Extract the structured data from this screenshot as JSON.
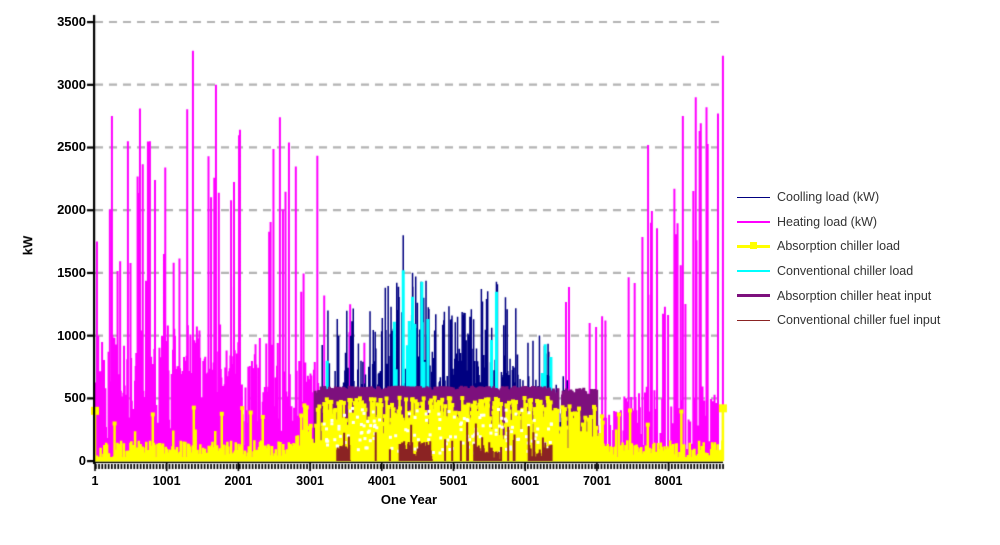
{
  "chart_data": {
    "type": "line",
    "title": "",
    "xlabel": "One Year",
    "ylabel": "kW",
    "x_ticks": [
      1,
      1001,
      2001,
      3001,
      4001,
      5001,
      6001,
      7001,
      8001
    ],
    "y_ticks": [
      0,
      500,
      1000,
      1500,
      2000,
      2500,
      3000,
      3500
    ],
    "xlim": [
      1,
      8760
    ],
    "ylim": [
      0,
      3500
    ],
    "grid": "horizontal-dashed",
    "gridline_color": "#b3b3b3",
    "axis_color": "#000000",
    "legend_position": "right",
    "note": "Hourly (8760 h) load profiles; values estimated from figure envelopes",
    "draw_order": [
      1,
      0,
      3,
      4,
      2,
      5
    ],
    "series": [
      {
        "name": "Coolling load (kW)",
        "color": "#000080",
        "line_width": 1.5,
        "legend_line": 1.5,
        "segments": [
          {
            "x0": 3150,
            "x1": 3450,
            "step": 10,
            "mode": "spikes",
            "lo": 80,
            "hi": 450,
            "p": 0.18,
            "pk_lo": 700,
            "pk_hi": 1230
          },
          {
            "x0": 3450,
            "x1": 4050,
            "step": 9,
            "mode": "spikes",
            "lo": 250,
            "hi": 800,
            "p": 0.2,
            "pk_lo": 850,
            "pk_hi": 1350
          },
          {
            "x0": 4050,
            "x1": 4650,
            "step": 8,
            "mode": "spikes",
            "lo": 300,
            "hi": 900,
            "p": 0.28,
            "pk_lo": 1000,
            "pk_hi": 1500
          },
          {
            "x0": 4650,
            "x1": 5350,
            "step": 8,
            "mode": "spikes",
            "lo": 330,
            "hi": 900,
            "p": 0.25,
            "pk_lo": 950,
            "pk_hi": 1250
          },
          {
            "x0": 5350,
            "x1": 5900,
            "step": 8,
            "mode": "spikes",
            "lo": 300,
            "hi": 850,
            "p": 0.25,
            "pk_lo": 900,
            "pk_hi": 1430
          },
          {
            "x0": 5900,
            "x1": 6350,
            "step": 10,
            "mode": "spikes",
            "lo": 200,
            "hi": 700,
            "p": 0.2,
            "pk_lo": 750,
            "pk_hi": 1000
          },
          {
            "x0": 6350,
            "x1": 6650,
            "step": 14,
            "mode": "spikes",
            "lo": 50,
            "hi": 400,
            "p": 0.12,
            "pk_lo": 500,
            "pk_hi": 850
          }
        ],
        "peaks": [
          [
            3250,
            1200
          ],
          [
            4300,
            1800
          ],
          [
            4430,
            1500
          ],
          [
            4550,
            1430
          ],
          [
            4980,
            1160
          ],
          [
            5230,
            1150
          ],
          [
            5600,
            1430
          ],
          [
            5750,
            1210
          ],
          [
            6200,
            1000
          ]
        ]
      },
      {
        "name": "Heating load (kW)",
        "color": "#FF00FF",
        "line_width": 2,
        "legend_line": 2.5,
        "segments": [
          {
            "x0": 1,
            "x1": 900,
            "step": 9,
            "mode": "spikes",
            "lo": 20,
            "hi": 1050,
            "p": 0.13,
            "pk_lo": 1400,
            "pk_hi": 2800
          },
          {
            "x0": 900,
            "x1": 1900,
            "step": 9,
            "mode": "spikes",
            "lo": 20,
            "hi": 1100,
            "p": 0.13,
            "pk_lo": 1500,
            "pk_hi": 3000
          },
          {
            "x0": 1900,
            "x1": 2550,
            "step": 10,
            "mode": "spikes",
            "lo": 20,
            "hi": 1000,
            "p": 0.11,
            "pk_lo": 1300,
            "pk_hi": 2650
          },
          {
            "x0": 2550,
            "x1": 3150,
            "step": 12,
            "mode": "spikes",
            "lo": 10,
            "hi": 800,
            "p": 0.09,
            "pk_lo": 1100,
            "pk_hi": 2740
          },
          {
            "x0": 3150,
            "x1": 3950,
            "step": 16,
            "mode": "spikes",
            "lo": 0,
            "hi": 320,
            "p": 0.05,
            "pk_lo": 850,
            "pk_hi": 1350
          },
          {
            "x0": 3950,
            "x1": 6500,
            "step": 25,
            "mode": "spikes",
            "lo": 0,
            "hi": 40,
            "p": 0.012,
            "pk_lo": 120,
            "pk_hi": 420
          },
          {
            "x0": 6500,
            "x1": 7300,
            "step": 14,
            "mode": "spikes",
            "lo": 0,
            "hi": 420,
            "p": 0.1,
            "pk_lo": 950,
            "pk_hi": 1500
          },
          {
            "x0": 7300,
            "x1": 7950,
            "step": 12,
            "mode": "spikes",
            "lo": 0,
            "hi": 600,
            "p": 0.13,
            "pk_lo": 1000,
            "pk_hi": 2050
          },
          {
            "x0": 7950,
            "x1": 8450,
            "step": 22,
            "mode": "spikes",
            "lo": 0,
            "hi": 520,
            "p": 0.3,
            "pk_lo": 1100,
            "pk_hi": 2800
          },
          {
            "x0": 8450,
            "x1": 8759,
            "step": 24,
            "mode": "spikes",
            "lo": 0,
            "hi": 600,
            "p": 0.38,
            "pk_lo": 1500,
            "pk_hi": 3000
          }
        ],
        "peaks": [
          [
            28,
            1750
          ],
          [
            237,
            2750
          ],
          [
            460,
            2550
          ],
          [
            628,
            2810
          ],
          [
            767,
            2550
          ],
          [
            1367,
            3270
          ],
          [
            1688,
            3000
          ],
          [
            2023,
            2640
          ],
          [
            2580,
            2740
          ],
          [
            2877,
            1350
          ],
          [
            3560,
            1250
          ],
          [
            6900,
            1100
          ],
          [
            7120,
            1120
          ],
          [
            7715,
            2520
          ],
          [
            8200,
            2750
          ],
          [
            8380,
            2900
          ],
          [
            8530,
            2820
          ],
          [
            8759,
            3230
          ]
        ]
      },
      {
        "name": "Absorption chiller load",
        "color": "#FFFF00",
        "line_width": 2.5,
        "legend_line": 2.5,
        "marker": "square",
        "base_band": true,
        "segments": [
          {
            "x0": 1,
            "x1": 2800,
            "step": 13,
            "mode": "spikes",
            "lo": 0,
            "hi": 165,
            "p": 0.055,
            "pk_lo": 210,
            "pk_hi": 430
          },
          {
            "x0": 2800,
            "x1": 3150,
            "step": 11,
            "mode": "spikes",
            "lo": 0,
            "hi": 300,
            "p": 0.09,
            "pk_lo": 320,
            "pk_hi": 460
          },
          {
            "x0": 3150,
            "x1": 6400,
            "step": 7,
            "mode": "noise",
            "lo": 45,
            "hi": 505
          },
          {
            "x0": 6400,
            "x1": 7100,
            "step": 11,
            "mode": "spikes",
            "lo": 0,
            "hi": 380,
            "p": 0.16,
            "pk_lo": 390,
            "pk_hi": 440
          },
          {
            "x0": 7100,
            "x1": 8759,
            "step": 13,
            "mode": "spikes",
            "lo": 0,
            "hi": 165,
            "p": 0.055,
            "pk_lo": 210,
            "pk_hi": 430
          }
        ],
        "peaks": [
          [
            1,
            400
          ],
          [
            8759,
            420
          ]
        ],
        "end_markers": [
          [
            1,
            400
          ],
          [
            8759,
            420
          ]
        ]
      },
      {
        "name": "Conventional chiller load",
        "color": "#00FFFF",
        "line_width": 3,
        "legend_line": 2.5,
        "segments": [
          {
            "x0": 4150,
            "x1": 4650,
            "step": 26,
            "mode": "spikes",
            "lo": 0,
            "hi": 120,
            "p": 0.34,
            "pk_lo": 650,
            "pk_hi": 1480
          },
          {
            "x0": 4900,
            "x1": 5120,
            "step": 30,
            "mode": "spikes",
            "lo": 0,
            "hi": 100,
            "p": 0.25,
            "pk_lo": 500,
            "pk_hi": 900
          },
          {
            "x0": 5480,
            "x1": 5760,
            "step": 26,
            "mode": "spikes",
            "lo": 0,
            "hi": 120,
            "p": 0.3,
            "pk_lo": 600,
            "pk_hi": 1350
          },
          {
            "x0": 6150,
            "x1": 6400,
            "step": 30,
            "mode": "spikes",
            "lo": 0,
            "hi": 100,
            "p": 0.22,
            "pk_lo": 500,
            "pk_hi": 930
          }
        ],
        "peaks": [
          [
            3240,
            800
          ],
          [
            4300,
            1520
          ],
          [
            4430,
            1310
          ],
          [
            4560,
            1430
          ],
          [
            5600,
            1350
          ],
          [
            6280,
            930
          ]
        ]
      },
      {
        "name": "Absorption chiller heat input",
        "color": "#7D107D",
        "line_width": 3,
        "legend_line": 2.5,
        "segments": [
          {
            "x0": 3060,
            "x1": 3150,
            "step": 12,
            "mode": "plateau",
            "lo": 535,
            "hi": 575,
            "p": 0.5
          },
          {
            "x0": 3150,
            "x1": 6350,
            "step": 6,
            "mode": "plateau",
            "lo": 545,
            "hi": 600,
            "p": 0.05
          },
          {
            "x0": 6350,
            "x1": 7000,
            "step": 9,
            "mode": "plateau",
            "lo": 520,
            "hi": 585,
            "p": 0.45
          }
        ],
        "peaks": []
      },
      {
        "name": "Conventional chiller fuel input",
        "color": "#8B2323",
        "line_width": 2,
        "legend_line": 1.5,
        "segments": [
          {
            "x0": 3300,
            "x1": 6500,
            "step": 11,
            "mode": "spikes",
            "lo": 0,
            "hi": 0,
            "p": 0.09,
            "pk_lo": 90,
            "pk_hi": 310
          },
          {
            "x0": 3380,
            "x1": 3560,
            "step": 7,
            "mode": "noise",
            "lo": 5,
            "hi": 130
          },
          {
            "x0": 4250,
            "x1": 4700,
            "step": 7,
            "mode": "noise",
            "lo": 5,
            "hi": 160
          },
          {
            "x0": 5290,
            "x1": 5640,
            "step": 7,
            "mode": "noise",
            "lo": 5,
            "hi": 140
          },
          {
            "x0": 6060,
            "x1": 6350,
            "step": 9,
            "mode": "noise",
            "lo": 5,
            "hi": 130
          }
        ],
        "peaks": []
      }
    ]
  }
}
